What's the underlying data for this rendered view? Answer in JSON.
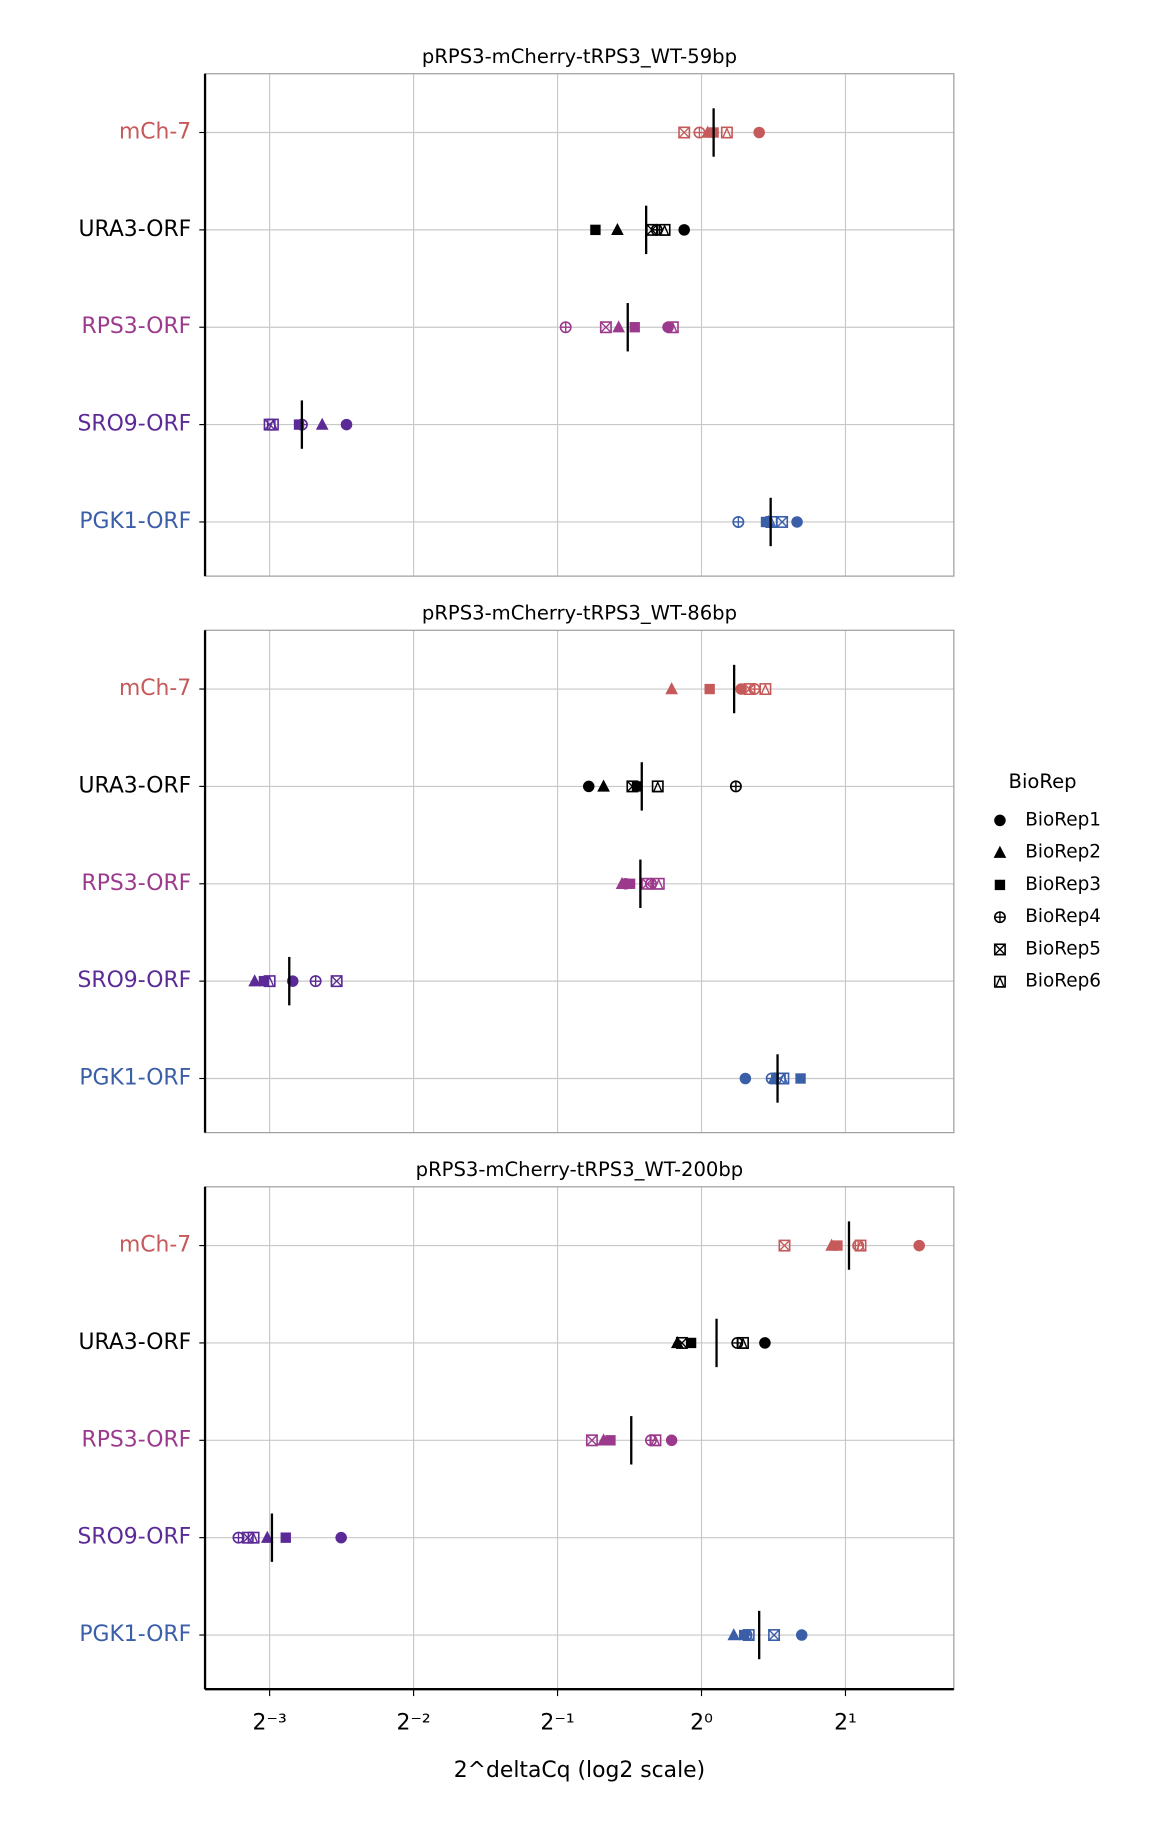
{
  "chart_data": [
    {
      "type": "scatter",
      "title": "pRPS3-mCherry-tRPS3_WT-59bp",
      "categories": [
        "mCh-7",
        "URA3-ORF",
        "RPS3-ORF",
        "SRO9-ORF",
        "PGK1-ORF"
      ],
      "category_colors": [
        "#c65a5a",
        "#000000",
        "#9b3a8d",
        "#5b2a96",
        "#3a5ea8"
      ],
      "series": [
        {
          "name": "BioRep1",
          "marker": "circle",
          "values": [
            1.32,
            0.92,
            0.851,
            0.181,
            1.584
          ]
        },
        {
          "name": "BioRep2",
          "marker": "triangle",
          "values": [
            1.03,
            0.667,
            0.671,
            0.161,
            1.38
          ]
        },
        {
          "name": "BioRep3",
          "marker": "square",
          "values": [
            1.06,
            0.6,
            0.725,
            0.144,
            1.364
          ]
        },
        {
          "name": "BioRep4",
          "marker": "circle-plus",
          "values": [
            0.99,
            0.806,
            0.52,
            0.146,
            1.194
          ]
        },
        {
          "name": "BioRep5",
          "marker": "square-x",
          "values": [
            0.92,
            0.788,
            0.631,
            0.125,
            1.474
          ]
        },
        {
          "name": "BioRep6",
          "marker": "square-triangle",
          "values": [
            1.13,
            0.837,
            0.871,
            0.127,
            1.4
          ]
        }
      ],
      "means": [
        1.06,
        0.766,
        0.701,
        0.146,
        1.395
      ],
      "log_scale": 2,
      "xlim": [
        0.0916,
        3.37
      ],
      "xticks": [
        0.125,
        0.25,
        0.5,
        1,
        2
      ],
      "grid": true
    },
    {
      "type": "scatter",
      "title": "pRPS3-mCherry-tRPS3_WT-86bp",
      "categories": [
        "mCh-7",
        "URA3-ORF",
        "RPS3-ORF",
        "SRO9-ORF",
        "PGK1-ORF"
      ],
      "category_colors": [
        "#c65a5a",
        "#000000",
        "#9b3a8d",
        "#5b2a96",
        "#3a5ea8"
      ],
      "series": [
        {
          "name": "BioRep1",
          "marker": "circle",
          "values": [
            1.21,
            0.581,
            0.694,
            0.1397,
            1.235
          ]
        },
        {
          "name": "BioRep2",
          "marker": "triangle",
          "values": [
            0.866,
            0.624,
            0.682,
            0.1163,
            1.418
          ]
        },
        {
          "name": "BioRep3",
          "marker": "square",
          "values": [
            1.04,
            0.733,
            0.709,
            0.1216,
            1.611
          ]
        },
        {
          "name": "BioRep4",
          "marker": "circle-plus",
          "values": [
            1.29,
            1.18,
            0.784,
            0.156,
            1.402
          ]
        },
        {
          "name": "BioRep5",
          "marker": "square-x",
          "values": [
            1.26,
            0.717,
            0.77,
            0.1726,
            1.458
          ]
        },
        {
          "name": "BioRep6",
          "marker": "square-triangle",
          "values": [
            1.36,
            0.81,
            0.814,
            0.125,
            1.483
          ]
        }
      ],
      "means": [
        1.17,
        0.75,
        0.745,
        0.1374,
        1.442
      ],
      "log_scale": 2,
      "xlim": [
        0.0916,
        3.37
      ],
      "xticks": [
        0.125,
        0.25,
        0.5,
        1,
        2
      ],
      "grid": true
    },
    {
      "type": "scatter",
      "title": "pRPS3-mCherry-tRPS3_WT-200bp",
      "categories": [
        "mCh-7",
        "URA3-ORF",
        "RPS3-ORF",
        "SRO9-ORF",
        "PGK1-ORF"
      ],
      "category_colors": [
        "#c65a5a",
        "#000000",
        "#9b3a8d",
        "#5b2a96",
        "#3a5ea8"
      ],
      "series": [
        {
          "name": "BioRep1",
          "marker": "circle",
          "values": [
            2.852,
            1.357,
            0.866,
            0.1764,
            1.62
          ]
        },
        {
          "name": "BioRep2",
          "marker": "triangle",
          "values": [
            1.871,
            0.89,
            0.624,
            0.1236,
            1.168
          ]
        },
        {
          "name": "BioRep3",
          "marker": "square",
          "values": [
            1.924,
            0.951,
            0.645,
            0.1351,
            1.228
          ]
        },
        {
          "name": "BioRep4",
          "marker": "circle-plus",
          "values": [
            2.126,
            1.188,
            0.784,
            0.1076,
            1.242
          ]
        },
        {
          "name": "BioRep5",
          "marker": "square-x",
          "values": [
            1.491,
            0.91,
            0.59,
            0.1125,
            1.418
          ]
        },
        {
          "name": "BioRep6",
          "marker": "square-triangle",
          "values": [
            2.15,
            1.221,
            0.801,
            0.1157,
            1.255
          ]
        }
      ],
      "means": [
        2.034,
        1.075,
        0.713,
        0.1264,
        1.32
      ],
      "log_scale": 2,
      "xlim": [
        0.0916,
        3.37
      ],
      "xticks": [
        {
          "value": 0.125,
          "label": "2⁻³"
        },
        {
          "value": 0.25,
          "label": "2⁻²"
        },
        {
          "value": 0.5,
          "label": "2⁻¹"
        },
        {
          "value": 1,
          "label": "2⁰"
        },
        {
          "value": 2,
          "label": "2¹"
        }
      ],
      "x_label": "2^deltaCq (log2 scale)",
      "grid": true
    }
  ],
  "legend": {
    "title": "BioRep"
  }
}
